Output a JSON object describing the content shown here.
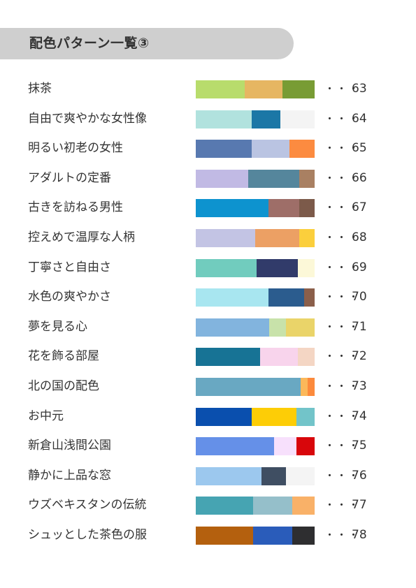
{
  "header": {
    "title": "配色パターン一覧③"
  },
  "items": [
    {
      "name": "抹茶",
      "page": "63",
      "colors": [
        {
          "hex": "#b8dc6c",
          "frac": 0.41
        },
        {
          "hex": "#e6b662",
          "frac": 0.32
        },
        {
          "hex": "#789c34",
          "frac": 0.27
        }
      ]
    },
    {
      "name": "自由で爽やかな女性像",
      "page": "64",
      "colors": [
        {
          "hex": "#b1e2de",
          "frac": 0.47
        },
        {
          "hex": "#1b77a6",
          "frac": 0.24
        },
        {
          "hex": "#f4f4f4",
          "frac": 0.29
        }
      ]
    },
    {
      "name": "明るい初老の女性",
      "page": "65",
      "colors": [
        {
          "hex": "#5879b0",
          "frac": 0.47
        },
        {
          "hex": "#bac4e2",
          "frac": 0.32
        },
        {
          "hex": "#fc8b40",
          "frac": 0.21
        }
      ]
    },
    {
      "name": "アダルトの定番",
      "page": "66",
      "colors": [
        {
          "hex": "#c1bae4",
          "frac": 0.44
        },
        {
          "hex": "#55869c",
          "frac": 0.43
        },
        {
          "hex": "#a98062",
          "frac": 0.13
        }
      ]
    },
    {
      "name": "古きを訪ねる男性",
      "page": "67",
      "colors": [
        {
          "hex": "#0d93cf",
          "frac": 0.61
        },
        {
          "hex": "#9e6e68",
          "frac": 0.26
        },
        {
          "hex": "#7c5a4a",
          "frac": 0.13
        }
      ]
    },
    {
      "name": "控えめで温厚な人柄",
      "page": "68",
      "colors": [
        {
          "hex": "#c3c4e4",
          "frac": 0.5
        },
        {
          "hex": "#eca064",
          "frac": 0.37
        },
        {
          "hex": "#fbcf3c",
          "frac": 0.13
        }
      ]
    },
    {
      "name": "丁寧さと自由さ",
      "page": "69",
      "colors": [
        {
          "hex": "#71ccbe",
          "frac": 0.51
        },
        {
          "hex": "#313b6a",
          "frac": 0.35
        },
        {
          "hex": "#fcf8d8",
          "frac": 0.14
        }
      ]
    },
    {
      "name": "水色の爽やかさ",
      "page": "70",
      "colors": [
        {
          "hex": "#a8e6f0",
          "frac": 0.61
        },
        {
          "hex": "#2b5c8e",
          "frac": 0.3
        },
        {
          "hex": "#8b5f4a",
          "frac": 0.09
        }
      ]
    },
    {
      "name": "夢を見る心",
      "page": "71",
      "colors": [
        {
          "hex": "#82b4de",
          "frac": 0.62
        },
        {
          "hex": "#c8e2aa",
          "frac": 0.14
        },
        {
          "hex": "#ead469",
          "frac": 0.24
        }
      ]
    },
    {
      "name": "花を飾る部屋",
      "page": "72",
      "colors": [
        {
          "hex": "#177395",
          "frac": 0.54
        },
        {
          "hex": "#f8d4ec",
          "frac": 0.32
        },
        {
          "hex": "#f4d6c4",
          "frac": 0.14
        }
      ]
    },
    {
      "name": "北の国の配色",
      "page": "73",
      "colors": [
        {
          "hex": "#69a8c2",
          "frac": 0.88
        },
        {
          "hex": "#fcb85a",
          "frac": 0.06
        },
        {
          "hex": "#fc8a3c",
          "frac": 0.06
        }
      ]
    },
    {
      "name": "お中元",
      "page": "74",
      "colors": [
        {
          "hex": "#0a4fae",
          "frac": 0.47
        },
        {
          "hex": "#fdcd06",
          "frac": 0.38
        },
        {
          "hex": "#72c4c9",
          "frac": 0.15
        }
      ]
    },
    {
      "name": "新倉山浅間公園",
      "page": "75",
      "colors": [
        {
          "hex": "#6590e8",
          "frac": 0.66
        },
        {
          "hex": "#f7e0fc",
          "frac": 0.19
        },
        {
          "hex": "#d8060b",
          "frac": 0.15
        }
      ]
    },
    {
      "name": "静かに上品な窓",
      "page": "76",
      "colors": [
        {
          "hex": "#9cc8ee",
          "frac": 0.55
        },
        {
          "hex": "#3f4e62",
          "frac": 0.21
        },
        {
          "hex": "#f4f4f4",
          "frac": 0.24
        }
      ]
    },
    {
      "name": "ウズベキスタンの伝統",
      "page": "77",
      "colors": [
        {
          "hex": "#46a4b2",
          "frac": 0.48
        },
        {
          "hex": "#95bfca",
          "frac": 0.33
        },
        {
          "hex": "#f9b168",
          "frac": 0.19
        }
      ]
    },
    {
      "name": "シュッとした茶色の服",
      "page": "78",
      "colors": [
        {
          "hex": "#b4600e",
          "frac": 0.48
        },
        {
          "hex": "#2a5cba",
          "frac": 0.33
        },
        {
          "hex": "#2e2e30",
          "frac": 0.19
        }
      ]
    }
  ],
  "leader": "・・・"
}
